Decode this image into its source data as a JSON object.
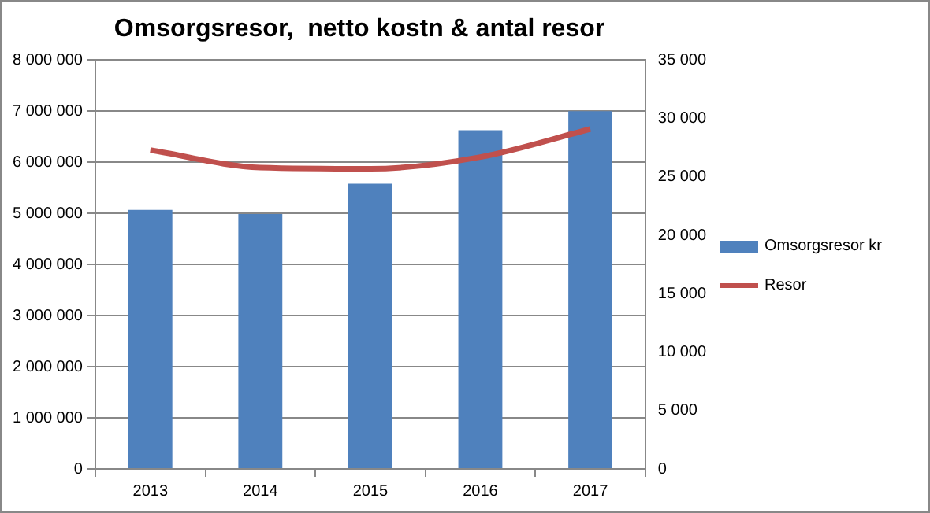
{
  "chart_data": {
    "type": "bar",
    "title": "Omsorgsresor,  netto kostn & antal resor",
    "categories": [
      "2013",
      "2014",
      "2015",
      "2016",
      "2017"
    ],
    "series": [
      {
        "name": "Omsorgsresor kr",
        "color": "#4f81bd",
        "values": [
          5070000,
          4990000,
          5580000,
          6630000,
          7000000
        ]
      },
      {
        "name": "Resor",
        "type": "line",
        "axis": "y2",
        "color": "#c0504d",
        "values": [
          27300,
          25800,
          25700,
          26700,
          29100
        ]
      }
    ],
    "ylim": [
      0,
      8000000
    ],
    "yticks": [
      {
        "value": 0,
        "label": "0"
      },
      {
        "value": 1000000,
        "label": "1 000 000"
      },
      {
        "value": 2000000,
        "label": "2 000 000"
      },
      {
        "value": 3000000,
        "label": "3 000 000"
      },
      {
        "value": 4000000,
        "label": "4 000 000"
      },
      {
        "value": 5000000,
        "label": "5 000 000"
      },
      {
        "value": 6000000,
        "label": "6 000 000"
      },
      {
        "value": 7000000,
        "label": "7 000 000"
      },
      {
        "value": 8000000,
        "label": "8 000 000"
      }
    ],
    "y2lim": [
      0,
      35000
    ],
    "y2ticks": [
      {
        "value": 0,
        "label": "0"
      },
      {
        "value": 5000,
        "label": "5 000"
      },
      {
        "value": 10000,
        "label": "10 000"
      },
      {
        "value": 15000,
        "label": "15 000"
      },
      {
        "value": 20000,
        "label": "20 000"
      },
      {
        "value": 25000,
        "label": "25 000"
      },
      {
        "value": 30000,
        "label": "30 000"
      },
      {
        "value": 35000,
        "label": "35 000"
      }
    ],
    "grid": "y",
    "legend": "right",
    "marker": "none"
  }
}
